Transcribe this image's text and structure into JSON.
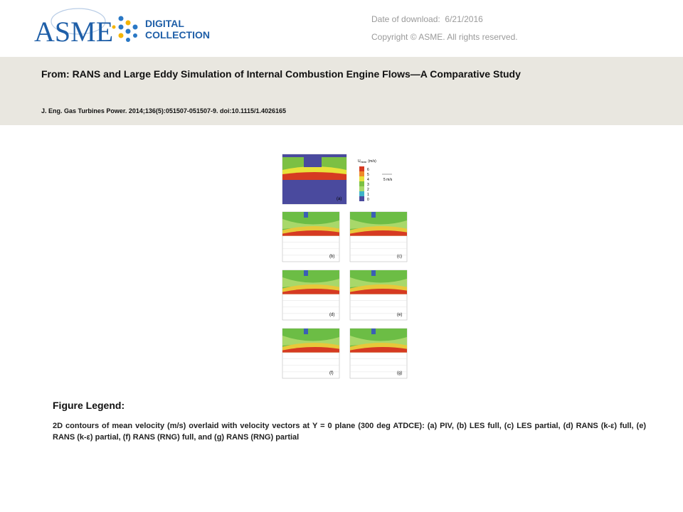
{
  "header": {
    "logo": {
      "name": "ASME",
      "line1": "DIGITAL",
      "line2": "COLLECTION"
    },
    "date_label": "Date of download:",
    "date": "6/21/2016",
    "copyright": "Copyright © ASME. All rights reserved."
  },
  "article": {
    "from_label": "From:",
    "title": "RANS and Large Eddy Simulation of Internal Combustion Engine Flows—A Comparative Study",
    "citation": "J. Eng. Gas Turbines Power. 2014;136(5):051507-051507-9. doi:10.1115/1.4026165"
  },
  "figure": {
    "panels": [
      "(a)",
      "(b)",
      "(c)",
      "(d)",
      "(e)",
      "(f)",
      "(g)"
    ],
    "colorbar": {
      "symbol": "U",
      "subscript": "mean",
      "unit": "(m/s)",
      "ticks": [
        "6",
        "5",
        "4",
        "3",
        "2",
        "1",
        "0"
      ]
    },
    "vector_scale": "5 m/s"
  },
  "legend": {
    "heading": "Figure Legend:",
    "caption": "2D contours of mean velocity (m/s) overlaid with velocity vectors at Y = 0 plane (300 deg ATDCE): (a) PIV, (b) LES full, (c) LES partial, (d) RANS (k-ε) full, (e) RANS (k-ε) partial, (f) RANS (RNG) full, and (g) RANS (RNG) partial"
  }
}
